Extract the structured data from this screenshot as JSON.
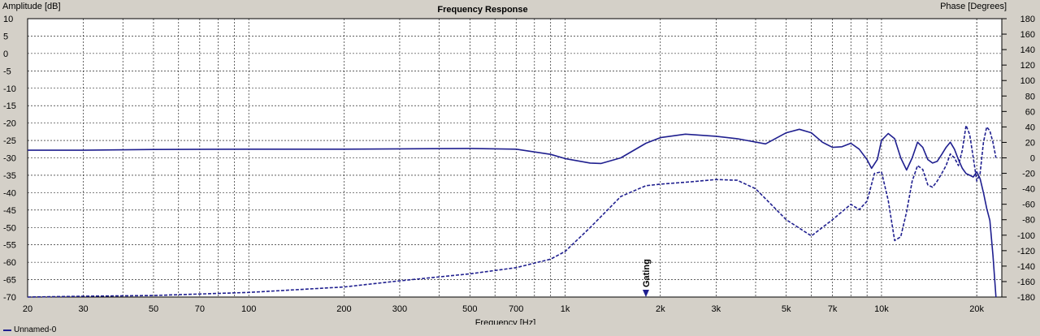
{
  "chart_data": {
    "type": "line",
    "title": "Frequency Response",
    "xlabel": "Frequency [Hz]",
    "ylabel_left": "Amplitude [dB]",
    "ylabel_right": "Phase [Degrees]",
    "x_scale": "log",
    "xlim": [
      20,
      24000
    ],
    "ylim_left": [
      -70,
      10
    ],
    "ylim_right": [
      -180,
      180
    ],
    "grid": true,
    "x_tick_labels": [
      {
        "value": 20,
        "label": "20"
      },
      {
        "value": 30,
        "label": "30"
      },
      {
        "value": 50,
        "label": "50"
      },
      {
        "value": 70,
        "label": "70"
      },
      {
        "value": 100,
        "label": "100"
      },
      {
        "value": 200,
        "label": "200"
      },
      {
        "value": 300,
        "label": "300"
      },
      {
        "value": 500,
        "label": "500"
      },
      {
        "value": 700,
        "label": "700"
      },
      {
        "value": 1000,
        "label": "1k"
      },
      {
        "value": 2000,
        "label": "2k"
      },
      {
        "value": 3000,
        "label": "3k"
      },
      {
        "value": 5000,
        "label": "5k"
      },
      {
        "value": 7000,
        "label": "7k"
      },
      {
        "value": 10000,
        "label": "10k"
      },
      {
        "value": 20000,
        "label": "20k"
      }
    ],
    "y_left_ticks": [
      10,
      5,
      0,
      -5,
      -10,
      -15,
      -20,
      -25,
      -30,
      -35,
      -40,
      -45,
      -50,
      -55,
      -60,
      -65,
      -70
    ],
    "y_right_ticks": [
      180,
      160,
      140,
      120,
      100,
      80,
      60,
      40,
      20,
      0,
      -20,
      -40,
      -60,
      -80,
      -100,
      -120,
      -140,
      -160,
      -180
    ],
    "annotations": [
      {
        "text": "Gating",
        "x": 1800
      }
    ],
    "series": [
      {
        "name": "Unnamed-0",
        "axis": "left",
        "style": "solid",
        "color": "#1f1f8f",
        "x": [
          20,
          30,
          50,
          100,
          200,
          300,
          500,
          700,
          900,
          1000,
          1200,
          1300,
          1500,
          1800,
          2000,
          2400,
          3000,
          3500,
          4300,
          5000,
          5500,
          6000,
          6500,
          7000,
          7500,
          8000,
          8500,
          9000,
          9300,
          9700,
          10000,
          10500,
          11000,
          11500,
          12000,
          12500,
          13000,
          13500,
          14000,
          14500,
          15000,
          15500,
          16000,
          16500,
          17000,
          17500,
          18000,
          18500,
          19000,
          19500,
          20000,
          20500,
          21000,
          21500,
          22000,
          22500,
          23000
        ],
        "y": [
          -27.8,
          -27.8,
          -27.6,
          -27.5,
          -27.5,
          -27.4,
          -27.3,
          -27.5,
          -29,
          -30.2,
          -31.5,
          -31.6,
          -30,
          -25.8,
          -24.2,
          -23.2,
          -23.8,
          -24.5,
          -26,
          -22.8,
          -21.8,
          -22.8,
          -25.5,
          -27,
          -26.8,
          -25.8,
          -27.5,
          -30.5,
          -33,
          -30.5,
          -25,
          -23,
          -24.5,
          -30,
          -33.5,
          -30,
          -25.5,
          -27,
          -30.5,
          -31.5,
          -31,
          -29,
          -27,
          -25.5,
          -27.5,
          -30.5,
          -33,
          -34.5,
          -35,
          -35.5,
          -34,
          -36,
          -40,
          -44.5,
          -48,
          -58,
          -70
        ]
      },
      {
        "name": "",
        "axis": "right",
        "style": "dashed",
        "color": "#1f1f8f",
        "x": [
          20,
          30,
          50,
          100,
          200,
          300,
          500,
          700,
          900,
          1000,
          1200,
          1500,
          1800,
          2000,
          2500,
          3000,
          3500,
          4000,
          5000,
          6000,
          7000,
          8000,
          8500,
          9000,
          9500,
          10000,
          10500,
          11000,
          11500,
          12000,
          12500,
          13000,
          13500,
          14000,
          14500,
          15000,
          15500,
          16000,
          16500,
          17000,
          17500,
          18000,
          18500,
          19000,
          19500,
          20000,
          20500,
          21000,
          21500,
          22000,
          22500,
          23000
        ],
        "y": [
          -180,
          -179,
          -178,
          -174,
          -167,
          -159,
          -150,
          -142,
          -131,
          -121,
          -90,
          -50,
          -36,
          -34,
          -31,
          -28,
          -29,
          -40,
          -80,
          -101,
          -80,
          -60,
          -67,
          -56,
          -20,
          -18,
          -55,
          -107,
          -102,
          -70,
          -30,
          -10,
          -15,
          -35,
          -38,
          -30,
          -20,
          -10,
          5,
          0,
          -10,
          10,
          42,
          30,
          0,
          -30,
          -20,
          20,
          40,
          35,
          20,
          0
        ]
      }
    ]
  },
  "legend": {
    "label": "Unnamed-0"
  }
}
